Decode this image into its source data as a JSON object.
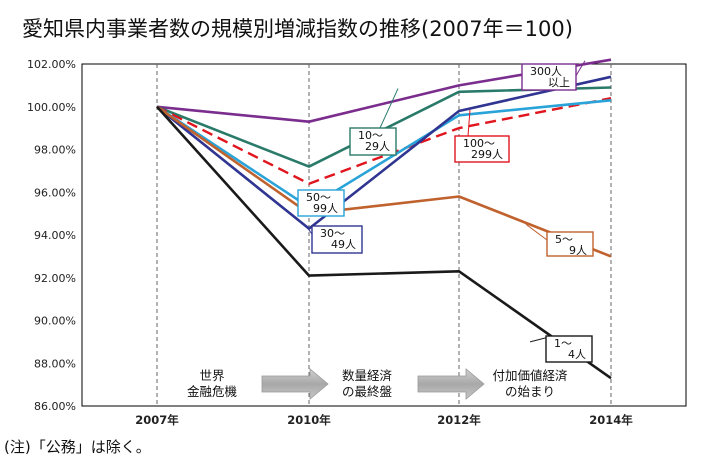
{
  "chart_data": {
    "type": "line",
    "title": "愛知県内事業者数の規模別増減指数の推移(2007年＝100)",
    "categories": [
      "2007年",
      "2010年",
      "2012年",
      "2014年"
    ],
    "ylim": [
      86,
      102
    ],
    "yticks": [
      "86.00%",
      "88.00%",
      "90.00%",
      "92.00%",
      "94.00%",
      "96.00%",
      "98.00%",
      "100.00%",
      "102.00%"
    ],
    "grid": "dashed vertical at each category",
    "series": [
      {
        "name": "300人以上",
        "label_lines": [
          "300人",
          "以上"
        ],
        "color": "#7b2d8e",
        "dash": false,
        "values": [
          100.0,
          99.3,
          101.0,
          102.2
        ]
      },
      {
        "name": "10〜29人",
        "label_lines": [
          "10〜",
          "29人"
        ],
        "color": "#2a7a6a",
        "dash": false,
        "values": [
          100.0,
          97.2,
          100.7,
          100.9
        ]
      },
      {
        "name": "100〜299人",
        "label_lines": [
          "100〜",
          "299人"
        ],
        "color": "#e0151e",
        "dash": true,
        "values": [
          100.0,
          96.4,
          99.0,
          100.4
        ]
      },
      {
        "name": "50〜99人",
        "label_lines": [
          "50〜",
          "99人"
        ],
        "color": "#29a3d8",
        "dash": false,
        "values": [
          100.0,
          95.3,
          99.6,
          100.3
        ]
      },
      {
        "name": "30〜49人",
        "label_lines": [
          "30〜",
          "49人"
        ],
        "color": "#2f3591",
        "dash": false,
        "values": [
          100.0,
          94.3,
          99.8,
          101.4
        ]
      },
      {
        "name": "5〜9人",
        "label_lines": [
          "5〜",
          "9人"
        ],
        "color": "#c0622d",
        "dash": false,
        "values": [
          100.0,
          95.0,
          95.8,
          93.0
        ]
      },
      {
        "name": "1〜4人",
        "label_lines": [
          "1〜",
          "4人"
        ],
        "color": "#1a1a1a",
        "dash": false,
        "values": [
          100.0,
          92.1,
          92.3,
          87.3
        ]
      }
    ],
    "annotations": [
      {
        "lines": [
          "世界",
          "金融危機"
        ]
      },
      {
        "lines": [
          "数量経済",
          "の最終盤"
        ]
      },
      {
        "lines": [
          "付加価値経済",
          "の始まり"
        ]
      }
    ],
    "note": "(注)「公務」は除く。"
  }
}
